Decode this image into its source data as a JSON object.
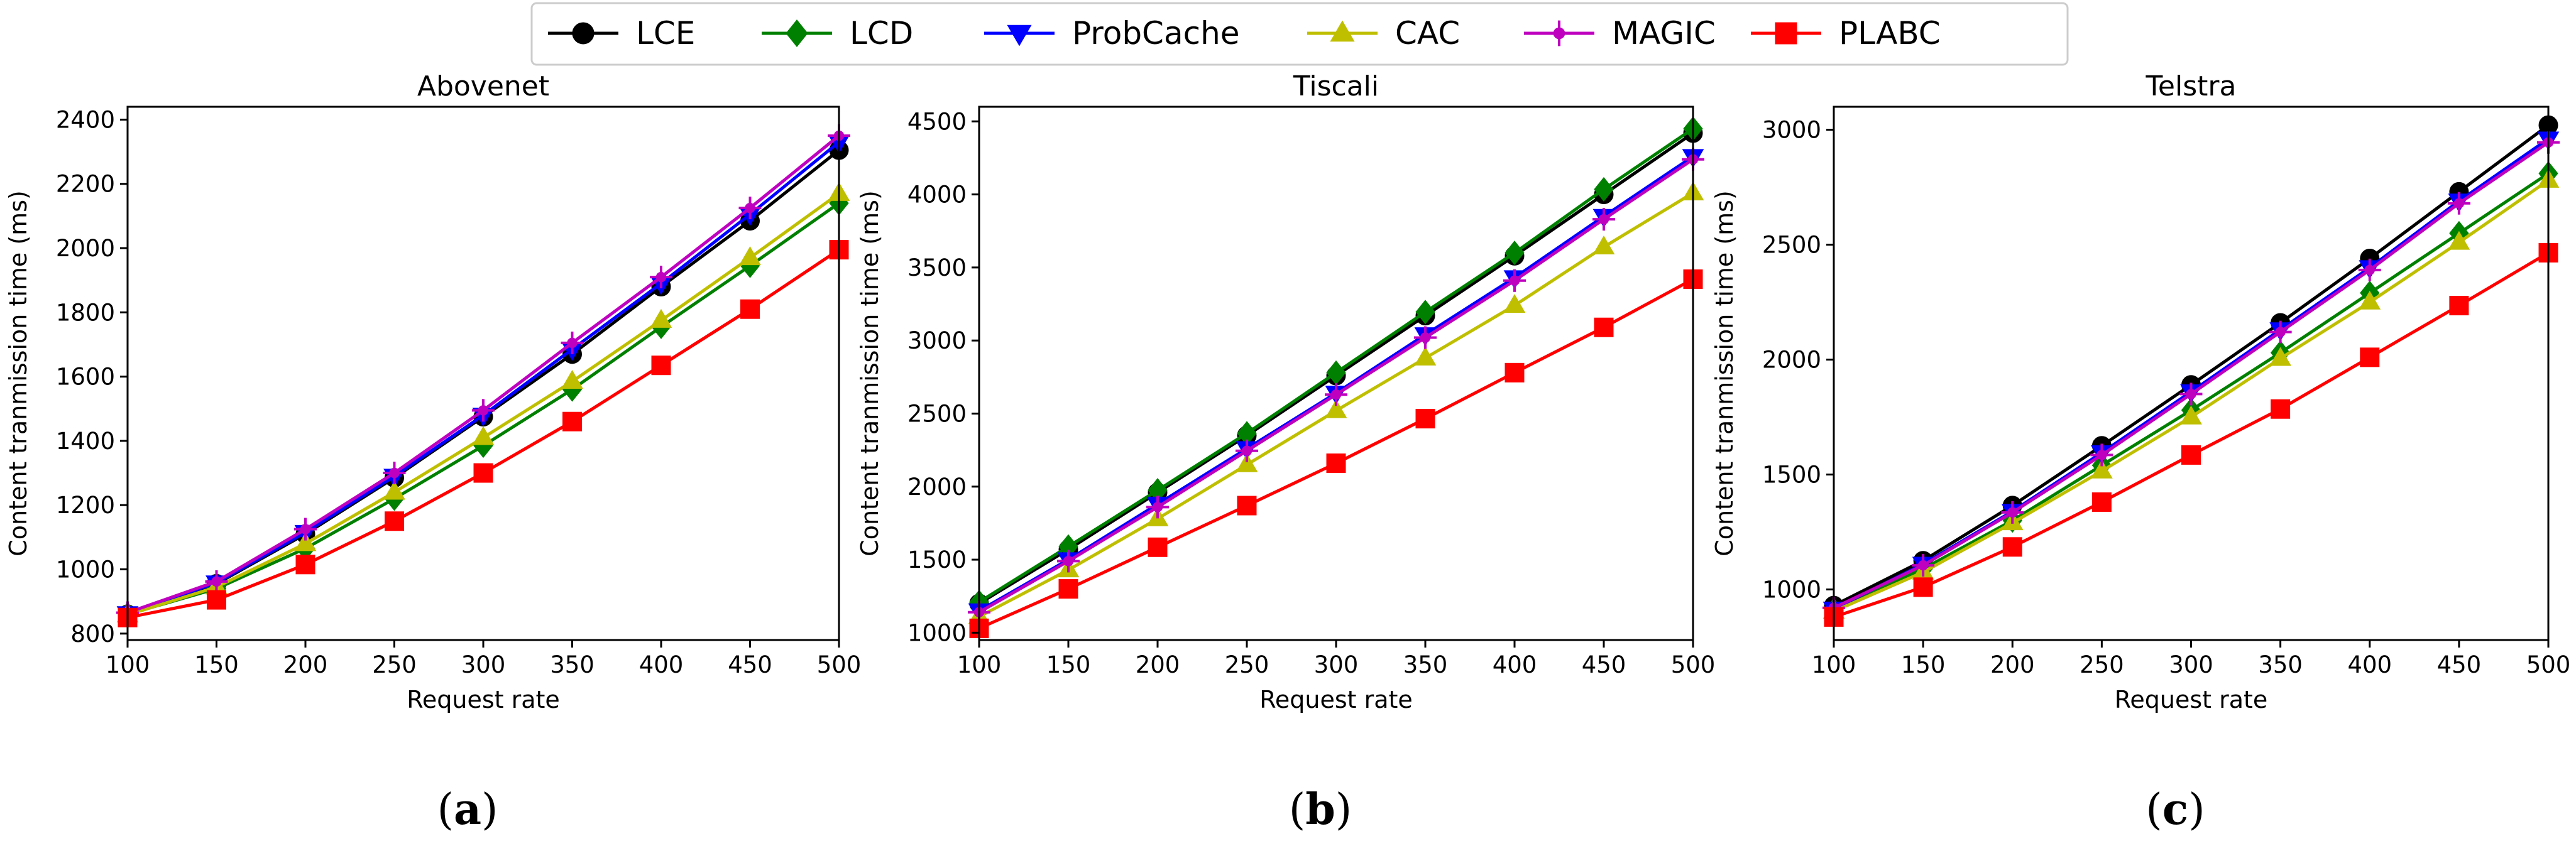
{
  "legend": [
    {
      "name": "LCE",
      "color": "#000000",
      "marker": "circle"
    },
    {
      "name": "LCD",
      "color": "#008000",
      "marker": "diamond"
    },
    {
      "name": "ProbCache",
      "color": "#0000ff",
      "marker": "tri-down"
    },
    {
      "name": "CAC",
      "color": "#bfbf00",
      "marker": "tri-up"
    },
    {
      "name": "MAGIC",
      "color": "#bf00bf",
      "marker": "star"
    },
    {
      "name": "PLABC",
      "color": "#ff0000",
      "marker": "square"
    }
  ],
  "chart_data": [
    {
      "type": "line",
      "title": "Abovenet",
      "caption": "a",
      "xlabel": "Request rate",
      "ylabel": "Content tranmission time (ms)",
      "x": [
        100,
        150,
        200,
        250,
        300,
        350,
        400,
        450,
        500
      ],
      "xlim": [
        100,
        500
      ],
      "ylim": [
        780,
        2440
      ],
      "xticks": [
        100,
        150,
        200,
        250,
        300,
        350,
        400,
        450,
        500
      ],
      "yticks": [
        800,
        1000,
        1200,
        1400,
        1600,
        1800,
        2000,
        2200,
        2400
      ],
      "series": [
        {
          "name": "LCE",
          "values": [
            860,
            955,
            1110,
            1285,
            1475,
            1670,
            1880,
            2085,
            2305
          ]
        },
        {
          "name": "LCD",
          "values": [
            860,
            940,
            1065,
            1220,
            1385,
            1560,
            1755,
            1945,
            2140
          ]
        },
        {
          "name": "ProbCache",
          "values": [
            862,
            958,
            1115,
            1290,
            1480,
            1685,
            1890,
            2105,
            2330
          ]
        },
        {
          "name": "CAC",
          "values": [
            858,
            945,
            1080,
            1240,
            1410,
            1585,
            1775,
            1970,
            2170
          ]
        },
        {
          "name": "MAGIC",
          "values": [
            865,
            962,
            1125,
            1300,
            1495,
            1705,
            1910,
            2125,
            2350
          ]
        },
        {
          "name": "PLABC",
          "values": [
            850,
            905,
            1015,
            1150,
            1300,
            1460,
            1635,
            1810,
            1995
          ]
        }
      ]
    },
    {
      "type": "line",
      "title": "Tiscali",
      "caption": "b",
      "xlabel": "Request rate",
      "ylabel": "Content tranmission time (ms)",
      "x": [
        100,
        150,
        200,
        250,
        300,
        350,
        400,
        450,
        500
      ],
      "xlim": [
        100,
        500
      ],
      "ylim": [
        950,
        4600
      ],
      "xticks": [
        100,
        150,
        200,
        250,
        300,
        350,
        400,
        450,
        500
      ],
      "yticks": [
        1000,
        1500,
        2000,
        2500,
        3000,
        3500,
        4000,
        4500
      ],
      "series": [
        {
          "name": "LCE",
          "values": [
            1200,
            1570,
            1960,
            2350,
            2760,
            3170,
            3580,
            4000,
            4420
          ]
        },
        {
          "name": "LCD",
          "values": [
            1210,
            1590,
            1975,
            2365,
            2780,
            3195,
            3600,
            4035,
            4450
          ]
        },
        {
          "name": "ProbCache",
          "values": [
            1150,
            1500,
            1880,
            2260,
            2640,
            3040,
            3430,
            3850,
            4260
          ]
        },
        {
          "name": "CAC",
          "values": [
            1110,
            1430,
            1780,
            2150,
            2520,
            2880,
            3240,
            3640,
            4010
          ]
        },
        {
          "name": "MAGIC",
          "values": [
            1140,
            1490,
            1860,
            2245,
            2630,
            3020,
            3410,
            3830,
            4240
          ]
        },
        {
          "name": "PLABC",
          "values": [
            1030,
            1300,
            1585,
            1870,
            2160,
            2465,
            2780,
            3090,
            3420
          ]
        }
      ]
    },
    {
      "type": "line",
      "title": "Telstra",
      "caption": "c",
      "xlabel": "Request rate",
      "ylabel": "Content tranmission time (ms)",
      "x": [
        100,
        150,
        200,
        250,
        300,
        350,
        400,
        450,
        500
      ],
      "xlim": [
        100,
        500
      ],
      "ylim": [
        780,
        3100
      ],
      "xticks": [
        100,
        150,
        200,
        250,
        300,
        350,
        400,
        450,
        500
      ],
      "yticks": [
        1000,
        1500,
        2000,
        2500,
        3000
      ],
      "series": [
        {
          "name": "LCE",
          "values": [
            930,
            1125,
            1365,
            1625,
            1890,
            2160,
            2440,
            2730,
            3020
          ]
        },
        {
          "name": "LCD",
          "values": [
            910,
            1090,
            1300,
            1540,
            1780,
            2030,
            2290,
            2550,
            2810
          ]
        },
        {
          "name": "ProbCache",
          "values": [
            915,
            1110,
            1340,
            1595,
            1860,
            2130,
            2400,
            2690,
            2960
          ]
        },
        {
          "name": "CAC",
          "values": [
            905,
            1075,
            1290,
            1515,
            1750,
            2005,
            2250,
            2510,
            2780
          ]
        },
        {
          "name": "MAGIC",
          "values": [
            920,
            1105,
            1335,
            1585,
            1850,
            2120,
            2390,
            2680,
            2945
          ]
        },
        {
          "name": "PLABC",
          "values": [
            880,
            1010,
            1185,
            1380,
            1585,
            1785,
            2010,
            2235,
            2465
          ]
        }
      ]
    }
  ]
}
